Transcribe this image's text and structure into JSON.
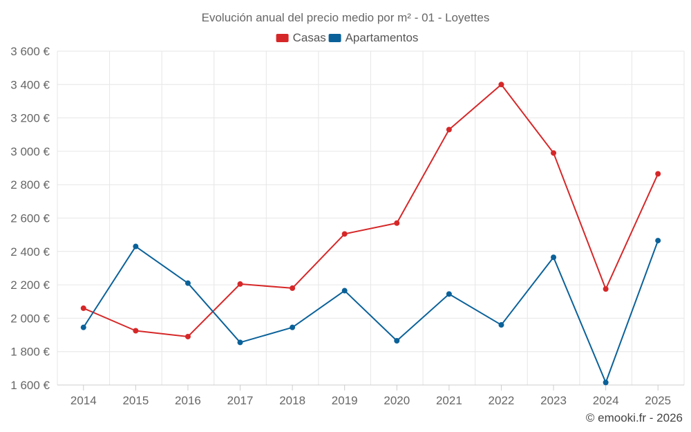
{
  "chart_data": {
    "type": "line",
    "title": "Evolución anual del precio medio por m² - 01 - Loyettes",
    "categories": [
      "2014",
      "2015",
      "2016",
      "2017",
      "2018",
      "2019",
      "2020",
      "2021",
      "2022",
      "2023",
      "2024",
      "2025"
    ],
    "ylim": [
      1600,
      3600
    ],
    "yticks": [
      1600,
      1800,
      2000,
      2200,
      2400,
      2600,
      2800,
      3000,
      3200,
      3400,
      3600
    ],
    "ytick_labels": [
      "1 600 €",
      "1 800 €",
      "2 000 €",
      "2 200 €",
      "2 400 €",
      "2 600 €",
      "2 800 €",
      "3 000 €",
      "3 200 €",
      "3 400 €",
      "3 600 €"
    ],
    "grid": true,
    "legend_position": "top-center",
    "series": [
      {
        "name": "Casas",
        "color": "#d62728",
        "values": [
          2060,
          1925,
          1890,
          2205,
          2180,
          2505,
          2570,
          3130,
          3400,
          2990,
          2175,
          2865
        ]
      },
      {
        "name": "Apartamentos",
        "color": "#0a6199",
        "values": [
          1945,
          2430,
          2210,
          1855,
          1945,
          2165,
          1865,
          2145,
          1960,
          2365,
          1615,
          2465
        ]
      }
    ],
    "credit": "© emooki.fr - 2026"
  }
}
